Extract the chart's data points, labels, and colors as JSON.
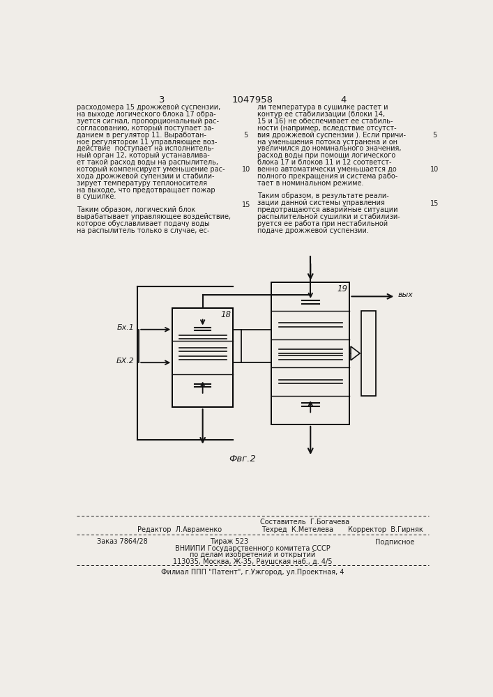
{
  "page_title": "1047958",
  "page_num_left": "3",
  "page_num_right": "4",
  "bg_color": "#f0ede8",
  "text_color": "#1a1a1a",
  "left_col_lines": [
    "расходомера 15 дрожжевой суспензии,",
    "на выходе логического блока 17 обра-",
    "зуется сигнал, пропорциональный рас-",
    "согласованию, который поступает за-",
    "данием в регулятор 11. Выработан-",
    "ное регулятором 11 управляющее воз-",
    "действие  поступает на исполнитель-",
    "ный орган 12, который устанавлива-",
    "ет такой расход воды на распылитель,",
    "который компенсирует уменьшение рас-",
    "хода дрожжевой супензии и стабили-",
    "зирует температуру теплоносителя",
    "на выходе, что предотвращает пожар",
    "в сушилке."
  ],
  "left_col_paragraph2": [
    "Таким образом, логический блок",
    "вырабатывает управляющее воздействие,",
    "которое обуславливает подачу воды",
    "на распылитель только в случае, ес-"
  ],
  "right_col_lines": [
    "ли температура в сушилке растет и",
    "контур ее стабилизации (блоки 14,",
    "15 и 16) не обеспечивает ее стабиль-",
    "ности (например, вследствие отсутст-",
    "вия дрожжевой суспензии ). Если причи-",
    "на уменьшения потока устранена и он",
    "увеличился до номинального значения,",
    "расход воды при помощи логического",
    "блока 17 и блоков 11 и 12 соответст-",
    "венно автоматически уменьшается до",
    "полного прекращения и система рабо-",
    "тает в номинальном режиме."
  ],
  "right_col_paragraph2": [
    "Таким образом, в результате реали-",
    "зации данной системы управления",
    "предотращаются аварийные ситуации",
    "распылительной сушилки и стабилизи-",
    "руется ее работа при нестабильной",
    "подаче дрожжевой суспензии."
  ],
  "fig_label": "Фвг.2",
  "bx1_label": "Бх.1",
  "bx2_label": "БХ.2",
  "vyx_label": "вых",
  "block18_label": "18",
  "block19_label": "19",
  "footer_sestavitel": "Составитель  Г.Богачева",
  "footer_redaktor": "Редактор  Л.Авраменко",
  "footer_tehred": "Техред  К.Метелева",
  "footer_korrektor": "Корректор  В.Гирняк",
  "footer_zakaz": "Заказ 7864/28",
  "footer_tirazh": "Тираж 523",
  "footer_podpisnoe": "Подписное",
  "footer_vniip1": "ВНИИПИ Государственного комитета СССР",
  "footer_vniip2": "по делам изобретений и открытий",
  "footer_vniip3": "113035, Москва, Ж-35, Раушская наб., д. 4/5",
  "footer_filial": "Филиал ППП \"Патент\", г.Ужгород, ул.Проектная, 4"
}
